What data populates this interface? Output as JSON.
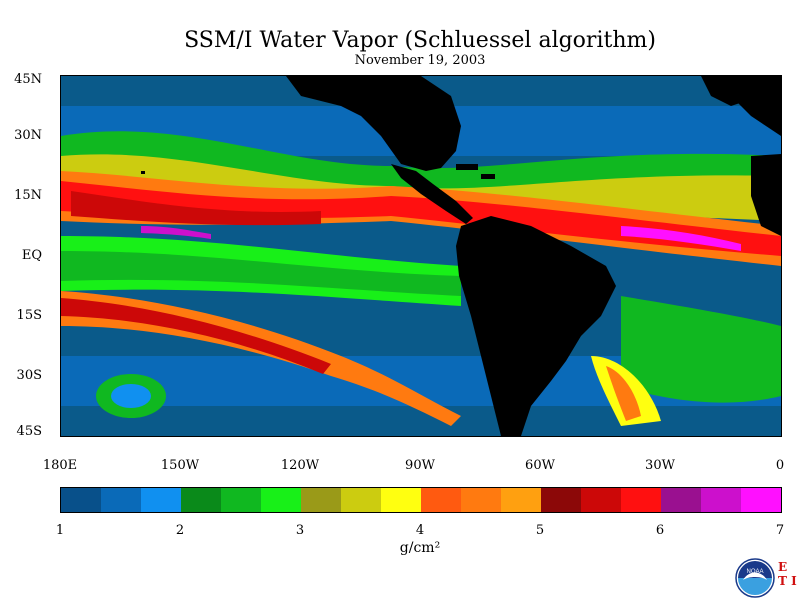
{
  "title": "SSM/I Water Vapor (Schluessel algorithm)",
  "subtitle": "November 19, 2003",
  "lat_labels": [
    "45N",
    "30N",
    "15N",
    "EQ",
    "15S",
    "30S",
    "45S"
  ],
  "lon_labels": [
    "180E",
    "150W",
    "120W",
    "90W",
    "60W",
    "30W",
    "0"
  ],
  "colorbar": {
    "colors": [
      "#08508a",
      "#0a6ab8",
      "#1090f0",
      "#0a8a1a",
      "#10b820",
      "#18f018",
      "#9a9a18",
      "#cccc10",
      "#ffff10",
      "#ff5a10",
      "#ff7a10",
      "#ffa010",
      "#8c0808",
      "#cc0808",
      "#ff1010",
      "#9a1090",
      "#cc10cc",
      "#ff10ff"
    ],
    "ticks": [
      "1",
      "2",
      "3",
      "4",
      "5",
      "6",
      "7"
    ],
    "units": "g/cm²"
  },
  "logo": {
    "icon": "noaa-logo-icon",
    "text": "NOAA",
    "side_text": "E T I"
  }
}
